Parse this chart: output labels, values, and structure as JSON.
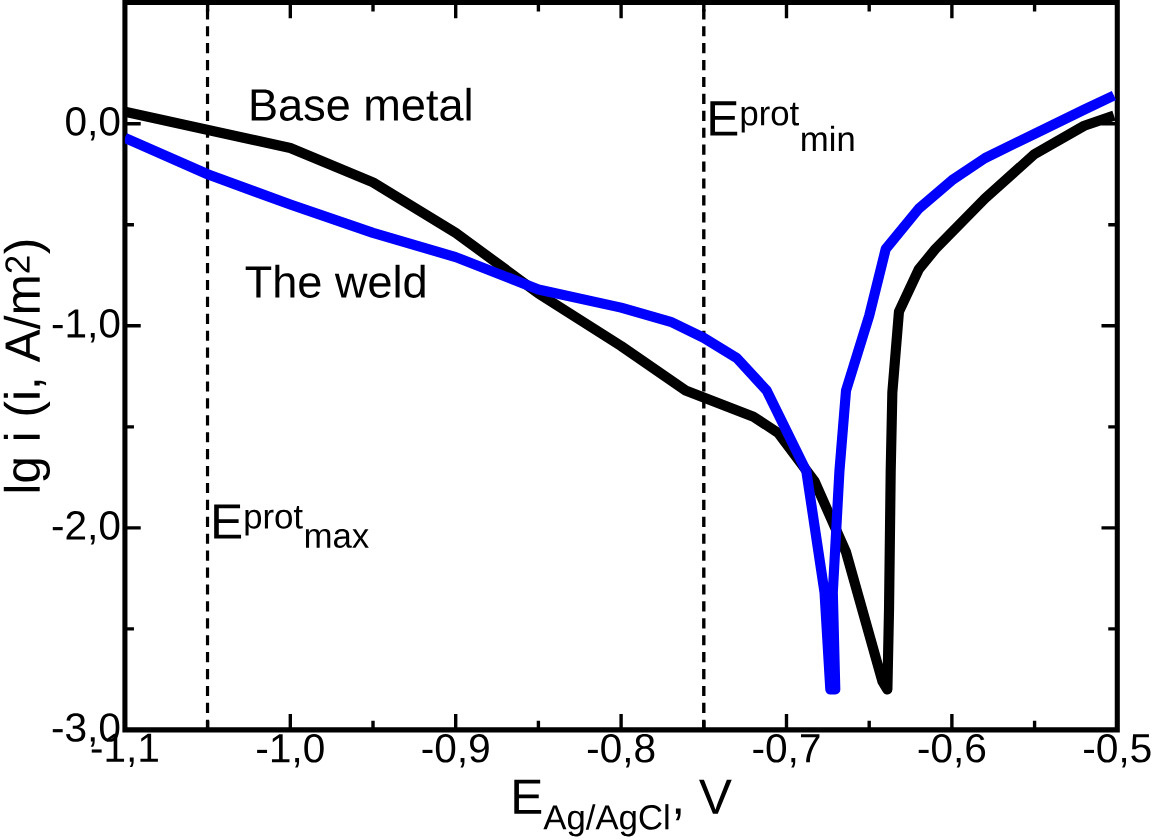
{
  "chart_data": {
    "type": "line",
    "xlabel": "E$_{Ag/AgCl}$, V",
    "ylabel": "lg i (i, A/m$^{2}$)",
    "xlim": [
      -1.1,
      -0.5
    ],
    "ylim": [
      -3.0,
      0.6
    ],
    "xticks": [
      {
        "value": -1.1,
        "label": "-1,1"
      },
      {
        "value": -1.0,
        "label": "-1,0"
      },
      {
        "value": -0.9,
        "label": "-0,9"
      },
      {
        "value": -0.8,
        "label": "-0,8"
      },
      {
        "value": -0.7,
        "label": "-0,7"
      },
      {
        "value": -0.6,
        "label": "-0,6"
      },
      {
        "value": -0.5,
        "label": "-0,5"
      }
    ],
    "yticks": [
      {
        "value": -3.0,
        "label": "-3,0"
      },
      {
        "value": -2.0,
        "label": "-2,0"
      },
      {
        "value": -1.0,
        "label": "-1,0"
      },
      {
        "value": 0.0,
        "label": "0,0"
      }
    ],
    "grid": false,
    "marker": "none",
    "line_style": "solid",
    "ref_lines": [
      {
        "axis": "x",
        "value": -1.05,
        "label": "E$^{prot}$$_{max}$",
        "line_style": "dashed",
        "color": "#000000"
      },
      {
        "axis": "x",
        "value": -0.75,
        "label": "E$^{prot}$$_{min}$",
        "line_style": "dashed",
        "color": "#000000"
      }
    ],
    "series": [
      {
        "name": "Base metal",
        "color": "#000000",
        "x": [
          -1.1,
          -1.05,
          -1.0,
          -0.95,
          -0.9,
          -0.85,
          -0.8,
          -0.761,
          -0.72,
          -0.705,
          -0.683,
          -0.664,
          -0.642,
          -0.639,
          -0.638,
          -0.637,
          -0.636,
          -0.632,
          -0.62,
          -0.61,
          -0.58,
          -0.55,
          -0.52,
          -0.502
        ],
        "values": [
          0.06,
          -0.03,
          -0.12,
          -0.29,
          -0.54,
          -0.84,
          -1.1,
          -1.32,
          -1.45,
          -1.53,
          -1.77,
          -2.12,
          -2.76,
          -2.8,
          -2.4,
          -1.72,
          -1.33,
          -0.93,
          -0.72,
          -0.62,
          -0.37,
          -0.15,
          -0.01,
          0.04
        ]
      },
      {
        "name": "The weld",
        "color": "#0000ff",
        "x": [
          -1.1,
          -1.05,
          -1.0,
          -0.95,
          -0.9,
          -0.85,
          -0.8,
          -0.77,
          -0.75,
          -0.73,
          -0.712,
          -0.688,
          -0.677,
          -0.6735,
          -0.6705,
          -0.672,
          -0.668,
          -0.664,
          -0.65,
          -0.64,
          -0.62,
          -0.6,
          -0.58,
          -0.55,
          -0.52,
          -0.502
        ],
        "values": [
          -0.07,
          -0.25,
          -0.4,
          -0.54,
          -0.66,
          -0.82,
          -0.91,
          -0.98,
          -1.06,
          -1.16,
          -1.32,
          -1.72,
          -2.32,
          -2.8,
          -2.8,
          -2.32,
          -1.72,
          -1.32,
          -0.95,
          -0.62,
          -0.42,
          -0.28,
          -0.17,
          -0.05,
          0.07,
          0.14
        ]
      }
    ]
  }
}
